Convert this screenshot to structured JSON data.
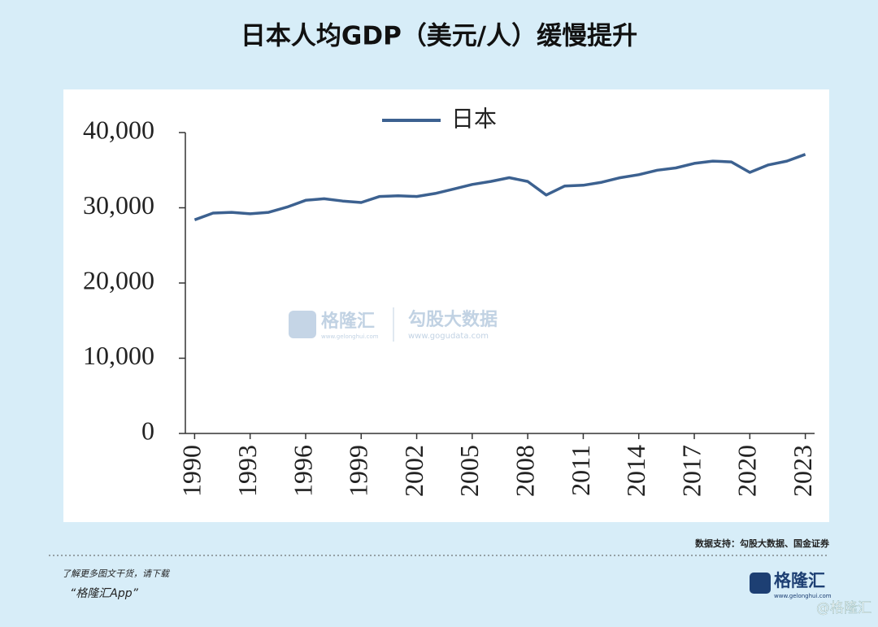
{
  "chart_data": {
    "type": "line",
    "title": "日本人均GDP（美元/人）缓慢提升",
    "x": [
      1990,
      1991,
      1992,
      1993,
      1994,
      1995,
      1996,
      1997,
      1998,
      1999,
      2000,
      2001,
      2002,
      2003,
      2004,
      2005,
      2006,
      2007,
      2008,
      2009,
      2010,
      2011,
      2012,
      2013,
      2014,
      2015,
      2016,
      2017,
      2018,
      2019,
      2020,
      2021,
      2022,
      2023
    ],
    "series": [
      {
        "name": "日本",
        "color": "#3c6190",
        "values": [
          28400,
          29300,
          29400,
          29200,
          29400,
          30100,
          31000,
          31200,
          30900,
          30700,
          31500,
          31600,
          31500,
          31900,
          32500,
          33100,
          33500,
          34000,
          33500,
          31700,
          32900,
          33000,
          33400,
          34000,
          34400,
          35000,
          35300,
          35900,
          36200,
          36100,
          34700,
          35700,
          36200,
          37100
        ]
      }
    ],
    "xlim": [
      1989.5,
      2023.5
    ],
    "xticks": [
      1990,
      1993,
      1996,
      1999,
      2002,
      2005,
      2008,
      2011,
      2014,
      2017,
      2020,
      2023
    ],
    "ylim": [
      0,
      40000
    ],
    "yticks": [
      0,
      {
        "value": 10000,
        "label": "10,000"
      },
      {
        "value": 20000,
        "label": "20,000"
      },
      {
        "value": 30000,
        "label": "30,000"
      },
      {
        "value": 40000,
        "label": "40,000"
      }
    ],
    "grid": false,
    "legend": "top"
  },
  "watermark": {
    "brand": "格隆汇",
    "brand_url": "www.gelonghui.com",
    "partner": "勾股大数据",
    "partner_url": "www.gogudata.com"
  },
  "footer": {
    "source": "数据支持：勾股大数据、国金证券",
    "promo": "了解更多图文干货，请下载",
    "app": "“格隆汇App”",
    "logo": "格隆汇",
    "logo_url": "www.gelonghui.com",
    "stamp": "@格隆汇"
  }
}
